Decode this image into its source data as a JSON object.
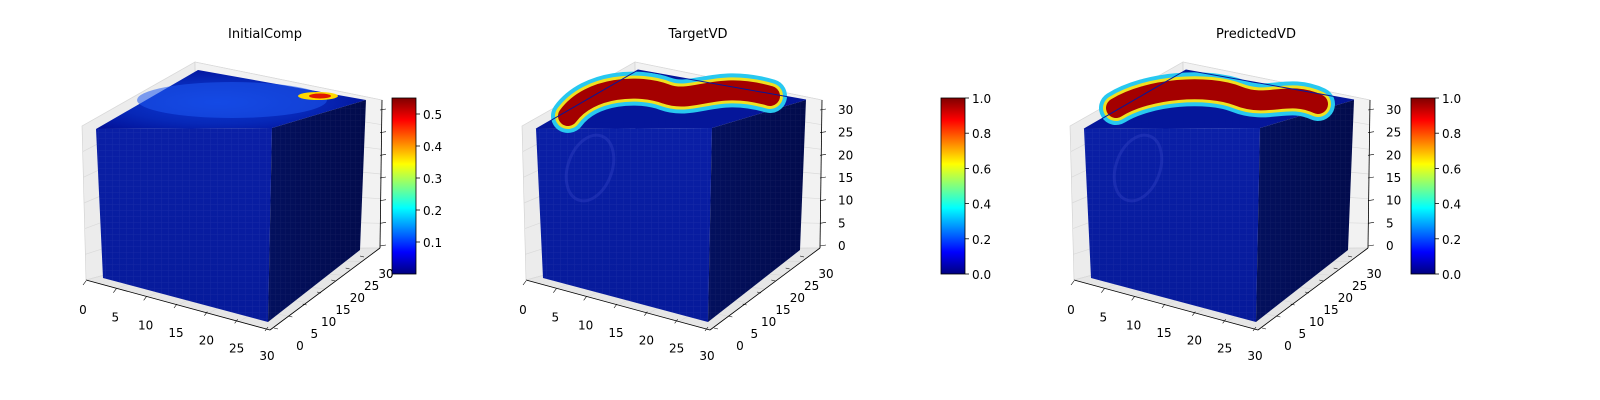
{
  "chart_data": [
    {
      "type": "3d-voxel",
      "title": "InitialComp",
      "x_ticks": [
        "0",
        "5",
        "10",
        "15",
        "20",
        "25",
        "30"
      ],
      "y_ticks": [
        "0",
        "5",
        "10",
        "15",
        "20",
        "25",
        "30"
      ],
      "z_ticks": [],
      "grid": true,
      "colorbar": {
        "range": [
          0.0,
          0.55
        ],
        "ticks": [
          "0.1",
          "0.2",
          "0.3",
          "0.4",
          "0.5"
        ]
      },
      "colormap": "jet"
    },
    {
      "type": "3d-voxel",
      "title": "TargetVD",
      "x_ticks": [
        "0",
        "5",
        "10",
        "15",
        "20",
        "25",
        "30"
      ],
      "y_ticks": [
        "0",
        "5",
        "10",
        "15",
        "20",
        "25",
        "30"
      ],
      "z_ticks": [
        "0",
        "5",
        "10",
        "15",
        "20",
        "25",
        "30"
      ],
      "grid": true,
      "colorbar": {
        "range": [
          0.0,
          1.0
        ],
        "ticks": [
          "0.0",
          "0.2",
          "0.4",
          "0.6",
          "0.8",
          "1.0"
        ]
      },
      "colormap": "jet"
    },
    {
      "type": "3d-voxel",
      "title": "PredictedVD",
      "x_ticks": [
        "0",
        "5",
        "10",
        "15",
        "20",
        "25",
        "30"
      ],
      "y_ticks": [
        "0",
        "5",
        "10",
        "15",
        "20",
        "25",
        "30"
      ],
      "z_ticks": [
        "0",
        "5",
        "10",
        "15",
        "20",
        "25",
        "30"
      ],
      "grid": true,
      "colorbar": {
        "range": [
          0.0,
          1.0
        ],
        "ticks": [
          "0.0",
          "0.2",
          "0.4",
          "0.6",
          "0.8",
          "1.0"
        ]
      },
      "colormap": "jet"
    }
  ]
}
